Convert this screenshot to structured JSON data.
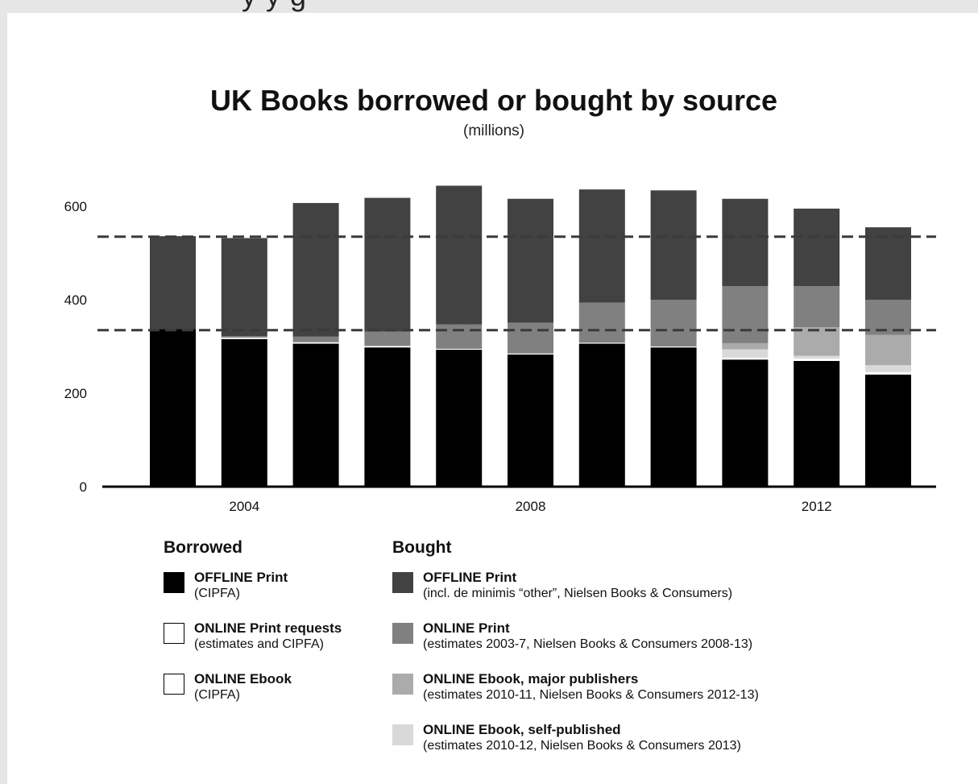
{
  "header_fragment": "y                                          y g",
  "chart_data": {
    "type": "bar",
    "stacked": true,
    "title": "UK Books borrowed or bought by source",
    "subtitle": "(millions)",
    "categories": [
      "2003",
      "2004",
      "2005",
      "2006",
      "2007",
      "2008",
      "2009",
      "2010",
      "2011",
      "2012",
      "2013"
    ],
    "x_tick_labels": [
      {
        "category": "2004",
        "label": "2004"
      },
      {
        "category": "2008",
        "label": "2008"
      },
      {
        "category": "2012",
        "label": "2012"
      }
    ],
    "yticks": [
      0,
      200,
      400,
      600
    ],
    "ylim": [
      0,
      660
    ],
    "grid": false,
    "reference_lines": [
      {
        "value": 535,
        "style": "dashed"
      },
      {
        "value": 335,
        "style": "dashed"
      }
    ],
    "series": [
      {
        "name": "Borrowed OFFLINE Print",
        "color": "#000000",
        "values": [
          337,
          316,
          306,
          298,
          293,
          283,
          306,
          298,
          272,
          269,
          240
        ]
      },
      {
        "name": "Borrowed ONLINE Print requests",
        "color": "#ffffff",
        "values": [
          0,
          3,
          3,
          3,
          2,
          2,
          2,
          2,
          2,
          2,
          2
        ]
      },
      {
        "name": "Borrowed ONLINE Ebook",
        "color": "#ffffff",
        "values": [
          0,
          0,
          0,
          0,
          0,
          0,
          0,
          0,
          2,
          3,
          3
        ]
      },
      {
        "name": "Bought ONLINE Ebook, self-published",
        "color": "#d9d9d9",
        "values": [
          0,
          0,
          0,
          0,
          0,
          0,
          0,
          0,
          18,
          6,
          15
        ]
      },
      {
        "name": "Bought ONLINE Ebook, major publishers",
        "color": "#ababab",
        "values": [
          0,
          0,
          0,
          0,
          0,
          0,
          0,
          0,
          13,
          61,
          65
        ]
      },
      {
        "name": "Bought ONLINE Print",
        "color": "#808080",
        "values": [
          0,
          3,
          12,
          31,
          52,
          66,
          86,
          100,
          122,
          88,
          75
        ]
      },
      {
        "name": "Bought OFFLINE Print",
        "color": "#424242",
        "values": [
          199,
          210,
          286,
          286,
          297,
          265,
          242,
          234,
          187,
          166,
          155
        ]
      }
    ]
  },
  "legend": {
    "borrowed": {
      "heading": "Borrowed",
      "items": [
        {
          "title": "OFFLINE  Print",
          "sub": "(CIPFA)",
          "color": "#000000"
        },
        {
          "title": "ONLINE  Print requests",
          "sub": "(estimates and CIPFA)",
          "color": "#ffffff"
        },
        {
          "title": "ONLINE  Ebook",
          "sub": "(CIPFA)",
          "color": "#ffffff"
        }
      ]
    },
    "bought": {
      "heading": "Bought",
      "items": [
        {
          "title": "OFFLINE  Print",
          "sub": "(incl. de minimis “other”, Nielsen Books & Consumers)",
          "color": "#424242"
        },
        {
          "title": "ONLINE  Print",
          "sub": "(estimates 2003-7, Nielsen Books & Consumers 2008-13)",
          "color": "#808080"
        },
        {
          "title": "ONLINE  Ebook, major publishers",
          "sub": "(estimates 2010-11, Nielsen Books & Consumers 2012-13)",
          "color": "#ababab"
        },
        {
          "title": "ONLINE  Ebook, self-published",
          "sub": "(estimates 2010-12, Nielsen Books & Consumers 2013)",
          "color": "#d9d9d9"
        }
      ]
    }
  }
}
